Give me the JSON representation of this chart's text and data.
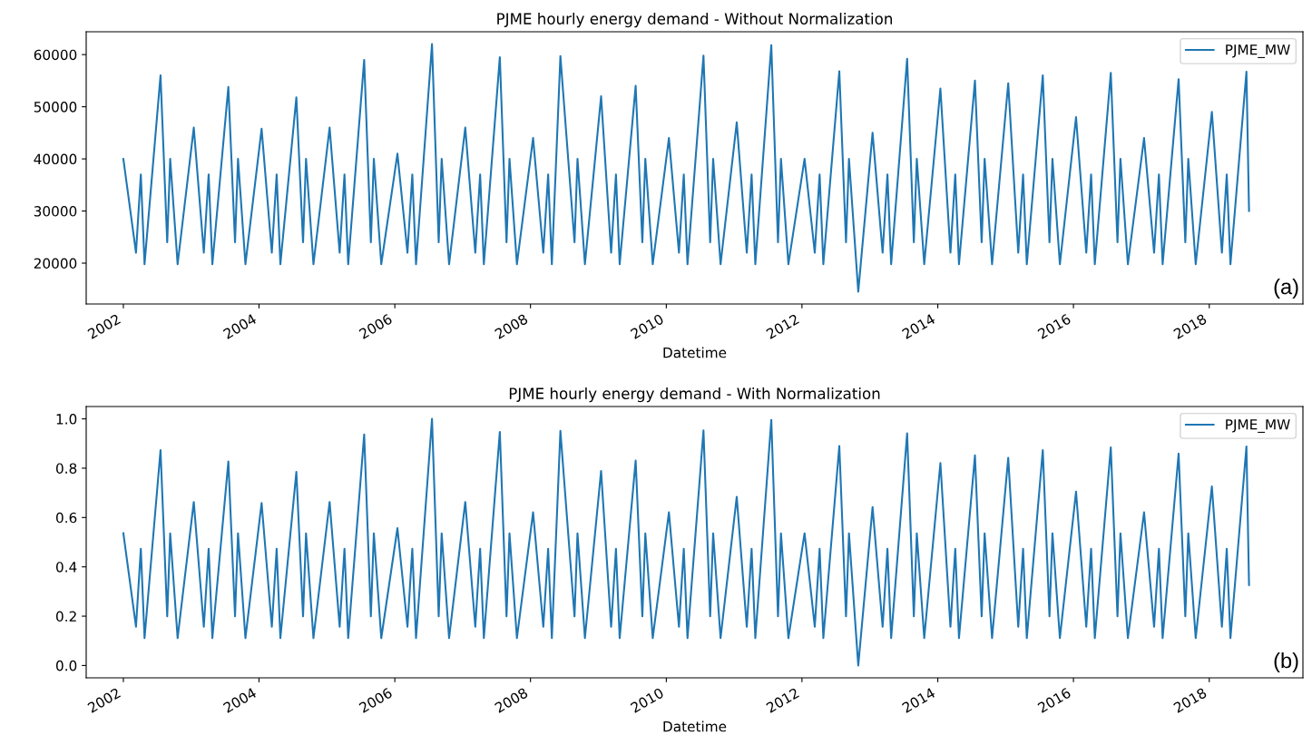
{
  "chart_data": [
    {
      "type": "line",
      "title": "PJME hourly energy demand - Without Normalization",
      "xlabel": "Datetime",
      "annotations": [
        "(a)"
      ],
      "legend": "top right",
      "grid": false,
      "xlim": [
        "2001-06-15",
        "2019-05-20"
      ],
      "xticks": [
        "2002",
        "2004",
        "2006",
        "2008",
        "2010",
        "2012",
        "2014",
        "2016",
        "2018"
      ],
      "ylim": [
        12171,
        64382
      ],
      "yticks": [
        20000,
        30000,
        40000,
        50000,
        60000
      ],
      "x": [
        "2002-01-01",
        "2002-03-10",
        "2002-04-05",
        "2002-04-25",
        "2002-07-20",
        "2002-08-25",
        "2002-09-10",
        "2002-10-20",
        "2003-01-15",
        "2003-03-10",
        "2003-04-05",
        "2003-04-25",
        "2003-07-20",
        "2003-08-25",
        "2003-09-10",
        "2003-10-20",
        "2004-01-15",
        "2004-03-10",
        "2004-04-05",
        "2004-04-25",
        "2004-07-20",
        "2004-08-25",
        "2004-09-10",
        "2004-10-20",
        "2005-01-15",
        "2005-03-10",
        "2005-04-05",
        "2005-04-25",
        "2005-07-20",
        "2005-08-25",
        "2005-09-10",
        "2005-10-20",
        "2006-01-15",
        "2006-03-10",
        "2006-04-05",
        "2006-04-25",
        "2006-07-20",
        "2006-08-25",
        "2006-09-10",
        "2006-10-20",
        "2007-01-15",
        "2007-03-10",
        "2007-04-05",
        "2007-04-25",
        "2007-07-20",
        "2007-08-25",
        "2007-09-10",
        "2007-10-20",
        "2008-01-15",
        "2008-03-10",
        "2008-04-05",
        "2008-04-25",
        "2008-06-10",
        "2008-08-25",
        "2008-09-10",
        "2008-10-20",
        "2009-01-15",
        "2009-03-10",
        "2009-04-05",
        "2009-04-25",
        "2009-07-20",
        "2009-08-25",
        "2009-09-10",
        "2009-10-20",
        "2010-01-15",
        "2010-03-10",
        "2010-04-05",
        "2010-04-25",
        "2010-07-20",
        "2010-08-25",
        "2010-09-10",
        "2010-10-20",
        "2011-01-15",
        "2011-03-10",
        "2011-04-05",
        "2011-04-25",
        "2011-07-20",
        "2011-08-25",
        "2011-09-10",
        "2011-10-20",
        "2012-01-15",
        "2012-03-10",
        "2012-04-05",
        "2012-04-25",
        "2012-07-20",
        "2012-08-25",
        "2012-09-10",
        "2012-10-30",
        "2013-01-15",
        "2013-03-10",
        "2013-04-05",
        "2013-04-25",
        "2013-07-20",
        "2013-08-25",
        "2013-09-10",
        "2013-10-20",
        "2014-01-15",
        "2014-03-10",
        "2014-04-05",
        "2014-04-25",
        "2014-07-20",
        "2014-08-25",
        "2014-09-10",
        "2014-10-20",
        "2015-01-15",
        "2015-03-10",
        "2015-04-05",
        "2015-04-25",
        "2015-07-20",
        "2015-08-25",
        "2015-09-10",
        "2015-10-20",
        "2016-01-15",
        "2016-03-10",
        "2016-04-05",
        "2016-04-25",
        "2016-07-20",
        "2016-08-25",
        "2016-09-10",
        "2016-10-20",
        "2017-01-15",
        "2017-03-10",
        "2017-04-05",
        "2017-04-25",
        "2017-07-20",
        "2017-08-25",
        "2017-09-10",
        "2017-10-20",
        "2018-01-15",
        "2018-03-10",
        "2018-04-05",
        "2018-04-25",
        "2018-07-20",
        "2018-08-03"
      ],
      "series": [
        {
          "name": "PJME_MW",
          "color": "#1f77b4",
          "values": [
            40000,
            22000,
            37000,
            19800,
            56000,
            24000,
            40000,
            19800,
            46000,
            22000,
            37000,
            19800,
            53800,
            24000,
            40000,
            19800,
            45800,
            22000,
            37000,
            19800,
            51800,
            24000,
            40000,
            19800,
            46000,
            22000,
            37000,
            19800,
            59000,
            24000,
            40000,
            19800,
            41000,
            22000,
            37000,
            19800,
            62009,
            24000,
            40000,
            19800,
            46000,
            22000,
            37000,
            19800,
            59500,
            24000,
            40000,
            19800,
            44000,
            22000,
            37000,
            19800,
            59700,
            24000,
            40000,
            19800,
            52000,
            22000,
            37000,
            19800,
            54000,
            24000,
            40000,
            19800,
            44000,
            22000,
            37000,
            19800,
            59800,
            24000,
            40000,
            19800,
            47000,
            22000,
            37000,
            19800,
            61800,
            24000,
            40000,
            19800,
            40000,
            22000,
            37000,
            19800,
            56800,
            24000,
            40000,
            14544,
            45000,
            22000,
            37000,
            19800,
            59200,
            24000,
            40000,
            19800,
            53500,
            22000,
            37000,
            19800,
            55000,
            24000,
            40000,
            19800,
            54500,
            22000,
            37000,
            19800,
            56000,
            24000,
            40000,
            19800,
            48000,
            22000,
            37000,
            19800,
            56500,
            24000,
            40000,
            19800,
            44000,
            22000,
            37000,
            19800,
            55300,
            24000,
            40000,
            19800,
            49000,
            22000,
            37000,
            19800,
            56700,
            30000
          ]
        }
      ]
    },
    {
      "type": "line",
      "title": "PJME hourly energy demand - With Normalization",
      "xlabel": "Datetime",
      "annotations": [
        "(b)"
      ],
      "legend": "top right",
      "grid": false,
      "xlim": [
        "2001-06-15",
        "2019-05-20"
      ],
      "xticks": [
        "2002",
        "2004",
        "2006",
        "2008",
        "2010",
        "2012",
        "2014",
        "2016",
        "2018"
      ],
      "ylim": [
        -0.05,
        1.05
      ],
      "yticks": [
        {
          "value": 0,
          "label": "0.0"
        },
        {
          "value": 0.2,
          "label": "0.2"
        },
        {
          "value": 0.4,
          "label": "0.4"
        },
        {
          "value": 0.6,
          "label": "0.6"
        },
        {
          "value": 0.8,
          "label": "0.8"
        },
        {
          "value": 1,
          "label": "1.0"
        }
      ],
      "x": [
        "2002-01-01",
        "2002-03-10",
        "2002-04-05",
        "2002-04-25",
        "2002-07-20",
        "2002-08-25",
        "2002-09-10",
        "2002-10-20",
        "2003-01-15",
        "2003-03-10",
        "2003-04-05",
        "2003-04-25",
        "2003-07-20",
        "2003-08-25",
        "2003-09-10",
        "2003-10-20",
        "2004-01-15",
        "2004-03-10",
        "2004-04-05",
        "2004-04-25",
        "2004-07-20",
        "2004-08-25",
        "2004-09-10",
        "2004-10-20",
        "2005-01-15",
        "2005-03-10",
        "2005-04-05",
        "2005-04-25",
        "2005-07-20",
        "2005-08-25",
        "2005-09-10",
        "2005-10-20",
        "2006-01-15",
        "2006-03-10",
        "2006-04-05",
        "2006-04-25",
        "2006-07-20",
        "2006-08-25",
        "2006-09-10",
        "2006-10-20",
        "2007-01-15",
        "2007-03-10",
        "2007-04-05",
        "2007-04-25",
        "2007-07-20",
        "2007-08-25",
        "2007-09-10",
        "2007-10-20",
        "2008-01-15",
        "2008-03-10",
        "2008-04-05",
        "2008-04-25",
        "2008-06-10",
        "2008-08-25",
        "2008-09-10",
        "2008-10-20",
        "2009-01-15",
        "2009-03-10",
        "2009-04-05",
        "2009-04-25",
        "2009-07-20",
        "2009-08-25",
        "2009-09-10",
        "2009-10-20",
        "2010-01-15",
        "2010-03-10",
        "2010-04-05",
        "2010-04-25",
        "2010-07-20",
        "2010-08-25",
        "2010-09-10",
        "2010-10-20",
        "2011-01-15",
        "2011-03-10",
        "2011-04-05",
        "2011-04-25",
        "2011-07-20",
        "2011-08-25",
        "2011-09-10",
        "2011-10-20",
        "2012-01-15",
        "2012-03-10",
        "2012-04-05",
        "2012-04-25",
        "2012-07-20",
        "2012-08-25",
        "2012-09-10",
        "2012-10-30",
        "2013-01-15",
        "2013-03-10",
        "2013-04-05",
        "2013-04-25",
        "2013-07-20",
        "2013-08-25",
        "2013-09-10",
        "2013-10-20",
        "2014-01-15",
        "2014-03-10",
        "2014-04-05",
        "2014-04-25",
        "2014-07-20",
        "2014-08-25",
        "2014-09-10",
        "2014-10-20",
        "2015-01-15",
        "2015-03-10",
        "2015-04-05",
        "2015-04-25",
        "2015-07-20",
        "2015-08-25",
        "2015-09-10",
        "2015-10-20",
        "2016-01-15",
        "2016-03-10",
        "2016-04-05",
        "2016-04-25",
        "2016-07-20",
        "2016-08-25",
        "2016-09-10",
        "2016-10-20",
        "2017-01-15",
        "2017-03-10",
        "2017-04-05",
        "2017-04-25",
        "2017-07-20",
        "2017-08-25",
        "2017-09-10",
        "2017-10-20",
        "2018-01-15",
        "2018-03-10",
        "2018-04-05",
        "2018-04-25",
        "2018-07-20",
        "2018-08-03"
      ],
      "series": [
        {
          "name": "PJME_MW",
          "color": "#1f77b4",
          "values": [
            0.536,
            0.157,
            0.473,
            0.111,
            0.873,
            0.199,
            0.536,
            0.111,
            0.663,
            0.157,
            0.473,
            0.111,
            0.827,
            0.199,
            0.536,
            0.111,
            0.659,
            0.157,
            0.473,
            0.111,
            0.785,
            0.199,
            0.536,
            0.111,
            0.663,
            0.157,
            0.473,
            0.111,
            0.937,
            0.199,
            0.536,
            0.111,
            0.557,
            0.157,
            0.473,
            0.111,
            1.0,
            0.199,
            0.536,
            0.111,
            0.663,
            0.157,
            0.473,
            0.111,
            0.947,
            0.199,
            0.536,
            0.111,
            0.621,
            0.157,
            0.473,
            0.111,
            0.951,
            0.199,
            0.536,
            0.111,
            0.789,
            0.157,
            0.473,
            0.111,
            0.831,
            0.199,
            0.536,
            0.111,
            0.621,
            0.157,
            0.473,
            0.111,
            0.953,
            0.199,
            0.536,
            0.111,
            0.684,
            0.157,
            0.473,
            0.111,
            0.996,
            0.199,
            0.536,
            0.111,
            0.536,
            0.157,
            0.473,
            0.111,
            0.89,
            0.199,
            0.536,
            0.0,
            0.642,
            0.157,
            0.473,
            0.111,
            0.941,
            0.199,
            0.536,
            0.111,
            0.821,
            0.157,
            0.473,
            0.111,
            0.852,
            0.199,
            0.536,
            0.111,
            0.842,
            0.157,
            0.473,
            0.111,
            0.873,
            0.199,
            0.536,
            0.111,
            0.705,
            0.157,
            0.473,
            0.111,
            0.884,
            0.199,
            0.536,
            0.111,
            0.621,
            0.157,
            0.473,
            0.111,
            0.859,
            0.199,
            0.536,
            0.111,
            0.726,
            0.157,
            0.473,
            0.111,
            0.888,
            0.326
          ]
        }
      ]
    }
  ]
}
